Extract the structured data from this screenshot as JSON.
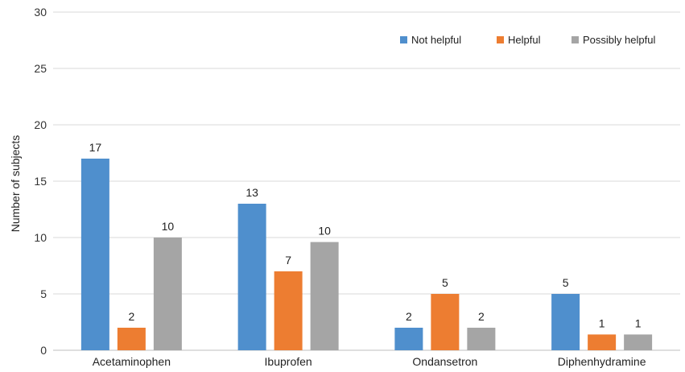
{
  "chart_data": {
    "type": "bar",
    "ylabel": "Number of subjects",
    "xlabel": "",
    "ylim": [
      0,
      30
    ],
    "yticks": [
      0,
      5,
      10,
      15,
      20,
      25,
      30
    ],
    "grid": true,
    "legend_position": "top-right",
    "categories": [
      "Acetaminophen",
      "Ibuprofen",
      "Ondansetron",
      "Diphenhydramine"
    ],
    "series": [
      {
        "name": "Not helpful",
        "color": "#4f8fcd",
        "values": [
          17,
          13,
          2,
          5
        ],
        "labels": [
          "17",
          "13",
          "2",
          "5"
        ]
      },
      {
        "name": "Helpful",
        "color": "#ed7d31",
        "values": [
          2,
          7,
          5,
          1.4
        ],
        "labels": [
          "2",
          "7",
          "5",
          "1"
        ]
      },
      {
        "name": "Possibly helpful",
        "color": "#a5a5a5",
        "values": [
          10,
          9.6,
          2,
          1.4
        ],
        "labels": [
          "10",
          "10",
          "2",
          "1"
        ]
      }
    ]
  }
}
